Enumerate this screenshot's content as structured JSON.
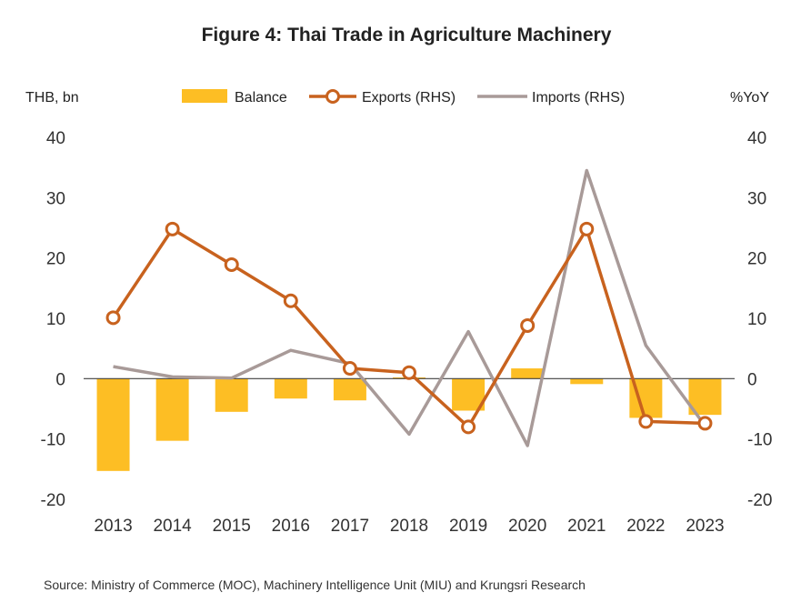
{
  "chart_data": {
    "type": "bar+line",
    "title": "Figure 4: Thai Trade in Agriculture Machinery",
    "left_axis_label": "THB, bn",
    "right_axis_label": "%YoY",
    "ylim_left": [
      -20,
      40
    ],
    "ylim_right": [
      -20,
      40
    ],
    "yticks": [
      "40",
      "30",
      "20",
      "10",
      "0",
      "-10",
      "-20"
    ],
    "ytick_values": [
      40,
      30,
      20,
      10,
      0,
      -10,
      -20
    ],
    "categories": [
      "2013",
      "2014",
      "2015",
      "2016",
      "2017",
      "2018",
      "2019",
      "2020",
      "2021",
      "2022",
      "2023"
    ],
    "series": [
      {
        "name": "Balance",
        "kind": "bar",
        "axis": "left",
        "color": "#FDBE24",
        "values": [
          -15.3,
          -10.3,
          -5.5,
          -3.3,
          -3.6,
          0.2,
          -5.3,
          1.7,
          -0.9,
          -6.5,
          -6.0
        ]
      },
      {
        "name": "Exports (RHS)",
        "kind": "line-marker",
        "axis": "right",
        "color": "#C8621E",
        "values": [
          10.1,
          24.8,
          18.9,
          12.9,
          1.7,
          1.0,
          -8.0,
          8.8,
          24.8,
          -7.1,
          -7.4
        ]
      },
      {
        "name": "Imports (RHS)",
        "kind": "line",
        "axis": "right",
        "color": "#A89A98",
        "values": [
          2.0,
          0.3,
          0.1,
          4.7,
          2.5,
          -9.2,
          7.8,
          -11.1,
          34.5,
          5.5,
          -7.8
        ]
      }
    ],
    "source": "Source: Ministry of Commerce (MOC), Machinery Intelligence Unit (MIU) and Krungsri Research"
  }
}
